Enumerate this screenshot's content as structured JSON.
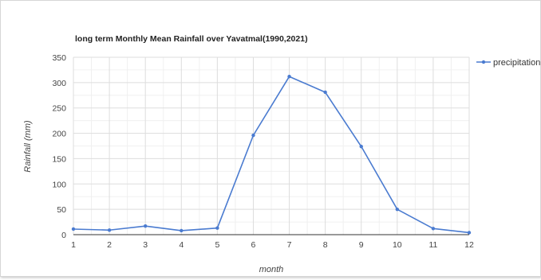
{
  "chart_data": {
    "type": "line",
    "title": "long term Monthly Mean Rainfall over Yavatmal(1990,2021)",
    "xlabel": "month",
    "ylabel": "Rainfall (mm)",
    "x": [
      1,
      2,
      3,
      4,
      5,
      6,
      7,
      8,
      9,
      10,
      11,
      12
    ],
    "ylim": [
      0,
      350
    ],
    "yticks": [
      0,
      50,
      100,
      150,
      200,
      250,
      300,
      350
    ],
    "grid": true,
    "legend_position": "right",
    "series": [
      {
        "name": "precipitation",
        "color": "#4a7bd0",
        "values": [
          11,
          9,
          17,
          8,
          13,
          196,
          312,
          281,
          174,
          50,
          12,
          4
        ]
      }
    ]
  }
}
